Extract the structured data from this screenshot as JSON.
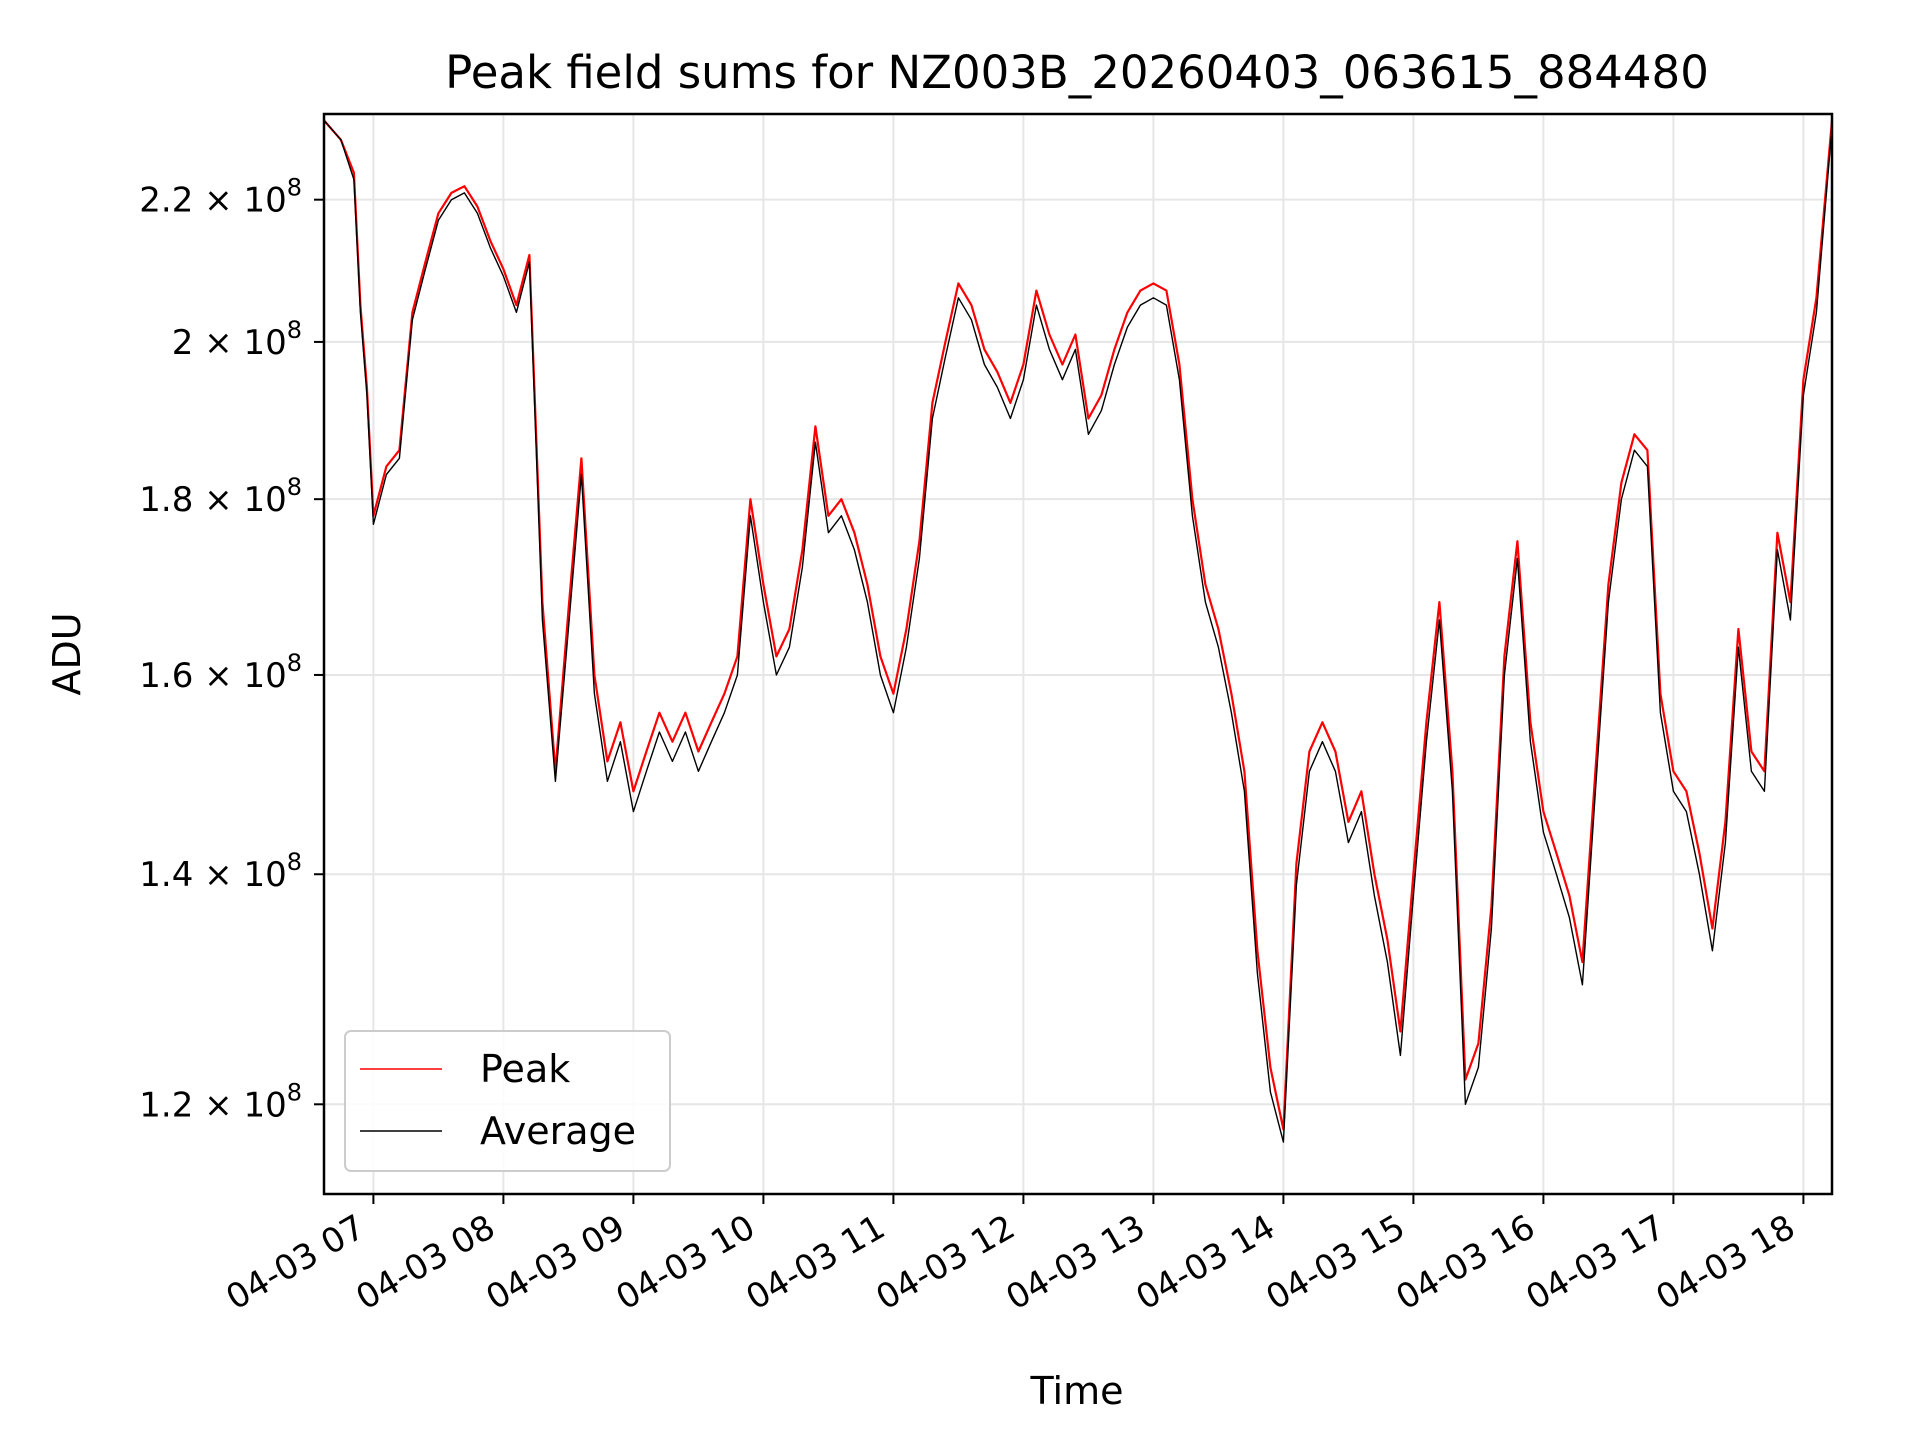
{
  "chart_data": {
    "type": "line",
    "title": "Peak field sums for NZ003B_20260403_063615_884480",
    "xlabel": "Time",
    "ylabel": "ADU",
    "yscale": "log",
    "ylim": [
      113000000,
      233000000
    ],
    "xlim_hours": [
      6.62,
      18.22
    ],
    "grid": true,
    "legend_position": "lower-left",
    "x_ticks": [
      {
        "hour": 7,
        "label": "04-03 07"
      },
      {
        "hour": 8,
        "label": "04-03 08"
      },
      {
        "hour": 9,
        "label": "04-03 09"
      },
      {
        "hour": 10,
        "label": "04-03 10"
      },
      {
        "hour": 11,
        "label": "04-03 11"
      },
      {
        "hour": 12,
        "label": "04-03 12"
      },
      {
        "hour": 13,
        "label": "04-03 13"
      },
      {
        "hour": 14,
        "label": "04-03 14"
      },
      {
        "hour": 15,
        "label": "04-03 15"
      },
      {
        "hour": 16,
        "label": "04-03 16"
      },
      {
        "hour": 17,
        "label": "04-03 17"
      },
      {
        "hour": 18,
        "label": "04-03 18"
      }
    ],
    "y_ticks": [
      {
        "value": 120000000,
        "mantissa": "1.2",
        "exponent": "8"
      },
      {
        "value": 140000000,
        "mantissa": "1.4",
        "exponent": "8"
      },
      {
        "value": 160000000,
        "mantissa": "1.6",
        "exponent": "8"
      },
      {
        "value": 180000000,
        "mantissa": "1.8",
        "exponent": "8"
      },
      {
        "value": 200000000,
        "mantissa": "2",
        "exponent": "8"
      },
      {
        "value": 220000000,
        "mantissa": "2.2",
        "exponent": "8"
      }
    ],
    "times_label_times": "hours of day (04-03)",
    "times": [
      6.62,
      6.75,
      6.85,
      6.9,
      6.95,
      7.0,
      7.1,
      7.2,
      7.3,
      7.4,
      7.5,
      7.6,
      7.7,
      7.8,
      7.9,
      8.0,
      8.1,
      8.2,
      8.3,
      8.4,
      8.5,
      8.6,
      8.7,
      8.8,
      8.9,
      9.0,
      9.1,
      9.2,
      9.3,
      9.4,
      9.5,
      9.6,
      9.7,
      9.8,
      9.9,
      10.0,
      10.1,
      10.2,
      10.3,
      10.4,
      10.5,
      10.6,
      10.7,
      10.8,
      10.9,
      11.0,
      11.1,
      11.2,
      11.3,
      11.4,
      11.5,
      11.6,
      11.7,
      11.8,
      11.9,
      12.0,
      12.1,
      12.2,
      12.3,
      12.4,
      12.5,
      12.6,
      12.7,
      12.8,
      12.9,
      13.0,
      13.1,
      13.2,
      13.3,
      13.4,
      13.5,
      13.6,
      13.7,
      13.8,
      13.9,
      14.0,
      14.1,
      14.2,
      14.3,
      14.4,
      14.5,
      14.6,
      14.7,
      14.8,
      14.9,
      15.0,
      15.1,
      15.2,
      15.3,
      15.4,
      15.5,
      15.6,
      15.7,
      15.8,
      15.9,
      16.0,
      16.1,
      16.2,
      16.3,
      16.4,
      16.5,
      16.6,
      16.7,
      16.8,
      16.9,
      17.0,
      17.1,
      17.2,
      17.3,
      17.4,
      17.5,
      17.6,
      17.7,
      17.8,
      17.9,
      18.0,
      18.1,
      18.22
    ],
    "series": [
      {
        "name": "Peak",
        "color": "#ff0000",
        "values": [
          232,
          229,
          224,
          205,
          194,
          178,
          184,
          186,
          204,
          211,
          218,
          221,
          222,
          219,
          214,
          210,
          205,
          212,
          168,
          150,
          167,
          185,
          160,
          151,
          155,
          148,
          152,
          156,
          153,
          156,
          152,
          155,
          158,
          162,
          180,
          170,
          162,
          165,
          174,
          189,
          178,
          180,
          176,
          170,
          162,
          158,
          165,
          175,
          192,
          200,
          208,
          205,
          199,
          196,
          192,
          197,
          207,
          201,
          197,
          201,
          190,
          193,
          199,
          204,
          207,
          208,
          207,
          197,
          180,
          170,
          165,
          158,
          150,
          133,
          123,
          118,
          141,
          152,
          155,
          152,
          145,
          148,
          140,
          134,
          126,
          140,
          155,
          168,
          150,
          122,
          125,
          137,
          162,
          175,
          155,
          146,
          142,
          138,
          132,
          150,
          170,
          182,
          188,
          186,
          158,
          150,
          148,
          142,
          135,
          145,
          165,
          152,
          150,
          176,
          168,
          195,
          206,
          232
        ]
      },
      {
        "name": "Average",
        "color": "#000000",
        "values": [
          232,
          229,
          223,
          204,
          193,
          177,
          183,
          185,
          203,
          210,
          217,
          220,
          221,
          218,
          213,
          209,
          204,
          211,
          166,
          149,
          165,
          183,
          158,
          149,
          153,
          146,
          150,
          154,
          151,
          154,
          150,
          153,
          156,
          160,
          178,
          168,
          160,
          163,
          172,
          187,
          176,
          178,
          174,
          168,
          160,
          156,
          163,
          173,
          190,
          198,
          206,
          203,
          197,
          194,
          190,
          195,
          205,
          199,
          195,
          199,
          188,
          191,
          197,
          202,
          205,
          206,
          205,
          195,
          178,
          168,
          163,
          156,
          148,
          131,
          121,
          117,
          139,
          150,
          153,
          150,
          143,
          146,
          138,
          132,
          124,
          138,
          153,
          166,
          148,
          120,
          123,
          135,
          160,
          173,
          153,
          144,
          140,
          136,
          130,
          148,
          168,
          180,
          186,
          184,
          156,
          148,
          146,
          140,
          133,
          143,
          163,
          150,
          148,
          174,
          166,
          193,
          204,
          231
        ]
      }
    ],
    "values_unit": "million ADU",
    "legend": [
      {
        "label": "Peak",
        "color": "#ff0000"
      },
      {
        "label": "Average",
        "color": "#000000"
      }
    ]
  }
}
